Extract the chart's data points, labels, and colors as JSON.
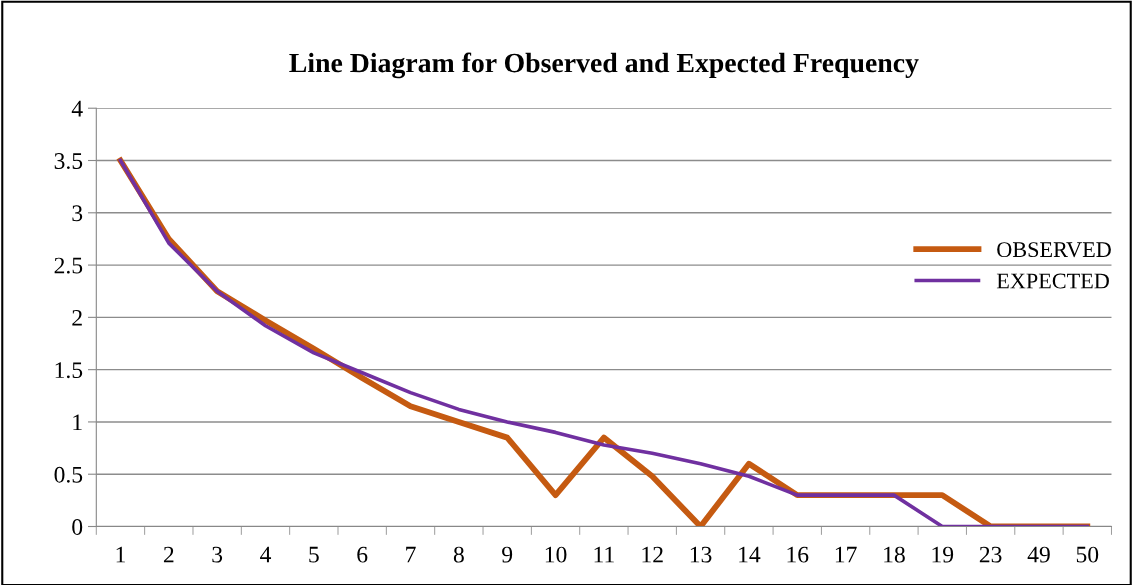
{
  "chart_data": {
    "type": "line",
    "title": "Line Diagram for Observed and Expected Frequency",
    "categories": [
      "1",
      "2",
      "3",
      "4",
      "5",
      "6",
      "7",
      "8",
      "9",
      "10",
      "11",
      "12",
      "13",
      "14",
      "16",
      "17",
      "18",
      "19",
      "23",
      "49",
      "50"
    ],
    "series": [
      {
        "name": "OBSERVED",
        "color": "#c55a11",
        "values": [
          3.5,
          2.75,
          2.25,
          1.97,
          1.7,
          1.42,
          1.15,
          1.0,
          0.85,
          0.3,
          0.85,
          0.48,
          0.0,
          0.6,
          0.3,
          0.3,
          0.3,
          0.3,
          0.0,
          0.0,
          0.0
        ]
      },
      {
        "name": "EXPECTED",
        "color": "#7030a0",
        "values": [
          3.5,
          2.71,
          2.25,
          1.92,
          1.66,
          1.47,
          1.28,
          1.12,
          1.0,
          0.9,
          0.78,
          0.7,
          0.6,
          0.48,
          0.3,
          0.3,
          0.3,
          0.0,
          0.0,
          0.0,
          0.0
        ]
      }
    ],
    "ylim": [
      0,
      4
    ],
    "yticks": [
      0,
      0.5,
      1,
      1.5,
      2,
      2.5,
      3,
      3.5,
      4
    ],
    "grid": "y",
    "legend": "right",
    "marker": "none",
    "line_style": "solid"
  }
}
